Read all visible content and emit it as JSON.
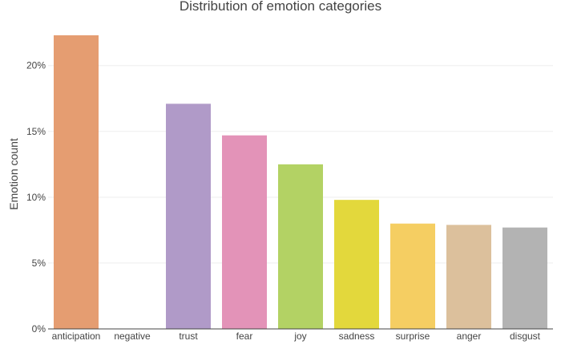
{
  "chart_data": {
    "type": "bar",
    "title": "Distribution of emotion categories",
    "xlabel": "",
    "ylabel": "Emotion count",
    "categories": [
      "anticipation",
      "negative",
      "trust",
      "fear",
      "joy",
      "sadness",
      "surprise",
      "anger",
      "disgust"
    ],
    "values": [
      22.3,
      0,
      17.1,
      14.7,
      12.5,
      9.8,
      8.0,
      7.9,
      7.7
    ],
    "colors": [
      "#E59D71",
      "#E59D71",
      "#B09AC8",
      "#E393B8",
      "#B3D264",
      "#E3D83C",
      "#F5CE62",
      "#DCC09C",
      "#B3B3B3"
    ],
    "ylim": [
      0,
      22.3
    ],
    "yticks": [
      0,
      5,
      10,
      15,
      20
    ],
    "ytick_labels": [
      "0%",
      "5%",
      "10%",
      "15%",
      "20%"
    ],
    "grid": true,
    "legend": "none"
  }
}
